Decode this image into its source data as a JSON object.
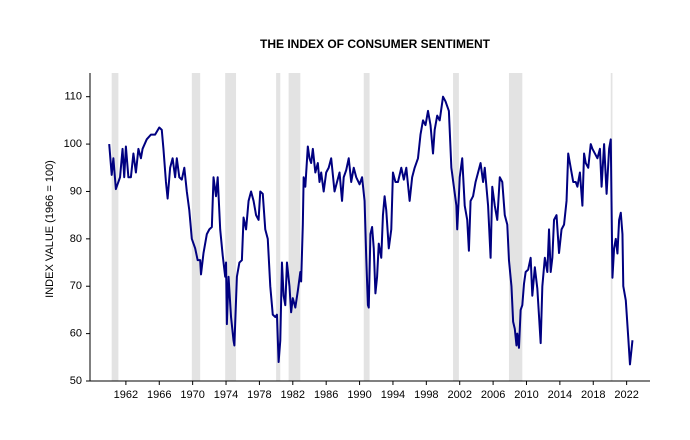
{
  "chart_data": {
    "type": "line",
    "title": "THE INDEX OF CONSUMER SENTIMENT",
    "y_label": "INDEX VALUE (1966 = 100)",
    "color": "#000080",
    "recession_color": "#e3e3e3",
    "xlim": [
      1957.7,
      2024.8
    ],
    "ylim": [
      50,
      115
    ],
    "xticks": [
      1962,
      1966,
      1970,
      1974,
      1978,
      1982,
      1986,
      1990,
      1994,
      1998,
      2002,
      2006,
      2010,
      2014,
      2018,
      2022
    ],
    "yticks": [
      50,
      60,
      70,
      80,
      90,
      100,
      110
    ],
    "recessions": [
      [
        1960.3,
        1961.1
      ],
      [
        1969.9,
        1970.9
      ],
      [
        1973.9,
        1975.2
      ],
      [
        1980.0,
        1980.5
      ],
      [
        1981.5,
        1982.9
      ],
      [
        1990.5,
        1991.2
      ],
      [
        2001.2,
        2001.9
      ],
      [
        2007.9,
        2009.5
      ],
      [
        2020.1,
        2020.3
      ]
    ],
    "x": [
      1960.0,
      1960.3,
      1960.5,
      1960.8,
      1961.0,
      1961.3,
      1961.6,
      1961.8,
      1962.0,
      1962.3,
      1962.6,
      1962.9,
      1963.2,
      1963.5,
      1963.8,
      1964.0,
      1964.5,
      1965.0,
      1965.5,
      1966.0,
      1966.3,
      1966.5,
      1966.8,
      1967.0,
      1967.3,
      1967.6,
      1967.9,
      1968.1,
      1968.4,
      1968.7,
      1969.0,
      1969.3,
      1969.6,
      1969.9,
      1970.3,
      1970.6,
      1970.9,
      1971.0,
      1971.3,
      1971.7,
      1972.0,
      1972.3,
      1972.5,
      1972.8,
      1973.0,
      1973.3,
      1973.6,
      1973.9,
      1974.0,
      1974.1,
      1974.3,
      1974.6,
      1974.9,
      1975.0,
      1975.3,
      1975.6,
      1975.9,
      1976.1,
      1976.4,
      1976.7,
      1977.0,
      1977.3,
      1977.6,
      1977.9,
      1978.1,
      1978.4,
      1978.7,
      1979.0,
      1979.3,
      1979.6,
      1979.9,
      1980.1,
      1980.3,
      1980.5,
      1980.7,
      1980.9,
      1981.1,
      1981.3,
      1981.6,
      1981.8,
      1982.0,
      1982.3,
      1982.6,
      1982.9,
      1983.0,
      1983.2,
      1983.3,
      1983.5,
      1983.8,
      1984.0,
      1984.2,
      1984.4,
      1984.7,
      1985.0,
      1985.2,
      1985.4,
      1985.7,
      1986.0,
      1986.3,
      1986.6,
      1987.0,
      1987.3,
      1987.6,
      1987.9,
      1988.1,
      1988.4,
      1988.7,
      1989.0,
      1989.3,
      1989.6,
      1990.0,
      1990.3,
      1990.6,
      1990.8,
      1991.0,
      1991.1,
      1991.3,
      1991.5,
      1991.7,
      1991.9,
      1992.1,
      1992.3,
      1992.6,
      1992.8,
      1993.0,
      1993.2,
      1993.5,
      1993.8,
      1994.0,
      1994.3,
      1994.6,
      1995.0,
      1995.3,
      1995.6,
      1996.0,
      1996.3,
      1996.6,
      1997.0,
      1997.3,
      1997.6,
      1997.9,
      1998.2,
      1998.5,
      1998.8,
      1999.0,
      1999.3,
      1999.6,
      2000.0,
      2000.3,
      2000.7,
      2001.0,
      2001.3,
      2001.6,
      2001.7,
      2001.9,
      2002.0,
      2002.3,
      2002.6,
      2002.9,
      2003.1,
      2003.3,
      2003.6,
      2003.9,
      2004.2,
      2004.5,
      2004.8,
      2005.0,
      2005.4,
      2005.7,
      2005.9,
      2006.2,
      2006.5,
      2006.8,
      2007.1,
      2007.4,
      2007.7,
      2007.9,
      2008.2,
      2008.4,
      2008.6,
      2008.8,
      2008.9,
      2009.1,
      2009.3,
      2009.5,
      2009.7,
      2009.9,
      2010.2,
      2010.5,
      2010.7,
      2011.0,
      2011.3,
      2011.7,
      2011.9,
      2012.2,
      2012.5,
      2012.7,
      2012.9,
      2013.1,
      2013.3,
      2013.6,
      2013.9,
      2014.2,
      2014.5,
      2014.8,
      2015.0,
      2015.3,
      2015.6,
      2015.9,
      2016.1,
      2016.4,
      2016.7,
      2016.9,
      2017.1,
      2017.4,
      2017.7,
      2017.9,
      2018.2,
      2018.5,
      2018.8,
      2019.0,
      2019.3,
      2019.6,
      2019.9,
      2020.1,
      2020.3,
      2020.5,
      2020.7,
      2020.9,
      2021.1,
      2021.3,
      2021.5,
      2021.6,
      2021.9,
      2022.2,
      2022.4,
      2022.7
    ],
    "values": [
      100,
      93.5,
      97,
      90.5,
      91.5,
      93,
      99,
      93,
      99.5,
      93,
      93,
      98,
      94,
      99,
      97,
      99,
      101,
      102,
      102,
      103.5,
      103,
      99,
      92,
      88.5,
      95,
      97,
      93,
      97,
      93,
      92.5,
      95,
      90,
      86,
      80,
      78,
      75.5,
      75.5,
      72.5,
      77,
      81,
      82,
      82.5,
      93,
      89,
      93,
      82,
      76.5,
      72,
      75,
      62,
      72,
      63.5,
      58.5,
      57.5,
      72,
      75,
      75.5,
      84.5,
      82,
      88,
      90,
      88,
      85,
      84,
      90,
      89.5,
      82,
      80,
      70,
      64,
      63.5,
      64,
      54,
      58.5,
      75,
      68,
      66,
      75,
      70,
      64.5,
      67.5,
      65.5,
      69,
      73,
      71,
      83,
      93,
      91,
      99.5,
      97,
      96,
      99,
      94,
      96,
      92,
      94,
      90,
      94,
      95,
      97,
      90,
      92,
      94,
      88,
      93,
      94.5,
      97,
      92,
      95,
      93,
      91.5,
      93,
      88,
      76,
      66,
      65.5,
      81,
      82.5,
      78,
      68.5,
      72,
      79,
      76,
      85,
      89,
      86,
      78,
      82,
      94,
      92,
      92,
      95,
      92.5,
      95,
      88,
      93,
      95,
      97,
      102,
      105,
      104,
      107,
      104,
      98,
      103,
      106,
      105,
      110,
      109,
      107,
      95,
      91,
      87,
      82,
      89,
      93,
      97,
      87,
      84,
      77.5,
      88,
      89,
      92,
      94,
      96,
      92,
      95,
      87,
      76,
      91,
      87,
      84,
      93,
      92,
      85,
      83,
      75.5,
      70,
      62.5,
      61,
      57.5,
      60,
      57,
      65,
      66,
      70.5,
      73,
      73.5,
      76,
      68,
      74,
      69.5,
      58,
      70,
      76,
      73,
      82,
      73,
      76,
      84,
      85,
      77,
      82,
      83,
      88,
      98,
      95,
      92,
      92,
      91,
      94,
      87,
      98,
      96,
      95,
      100,
      99,
      98,
      97,
      99,
      91,
      100,
      89.5,
      99,
      101,
      71.8,
      78,
      80,
      76.9,
      84,
      85.5,
      81,
      70,
      67,
      59,
      53.5,
      58.6
    ]
  }
}
